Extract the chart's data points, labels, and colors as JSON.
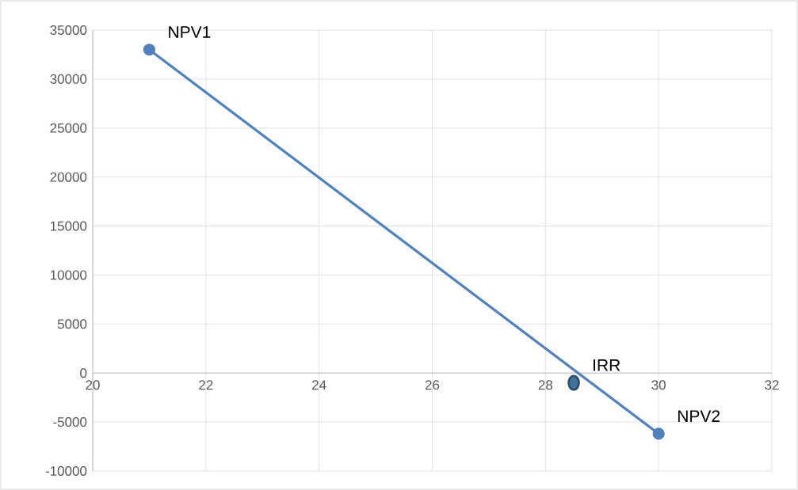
{
  "chart_data": {
    "type": "line",
    "xlim": [
      20,
      32
    ],
    "ylim": [
      -10000,
      35000
    ],
    "xticks": [
      20,
      22,
      24,
      26,
      28,
      30,
      32
    ],
    "yticks": [
      -10000,
      -5000,
      0,
      5000,
      10000,
      15000,
      20000,
      25000,
      30000,
      35000
    ],
    "grid": true,
    "marker": "circle",
    "series": [
      {
        "color": "#4f81bd",
        "x": [
          21,
          30
        ],
        "values": [
          33000,
          -6200
        ]
      },
      {
        "type": "scatter",
        "color": "#41719c",
        "x": [
          28.5
        ],
        "values": [
          -1000
        ]
      }
    ],
    "annotations": [
      {
        "text": "NPV1",
        "x": 21,
        "y": 33000
      },
      {
        "text": "IRR",
        "x": 28.5,
        "y": -1000
      },
      {
        "text": "NPV2",
        "x": 30,
        "y": -6200
      }
    ]
  }
}
